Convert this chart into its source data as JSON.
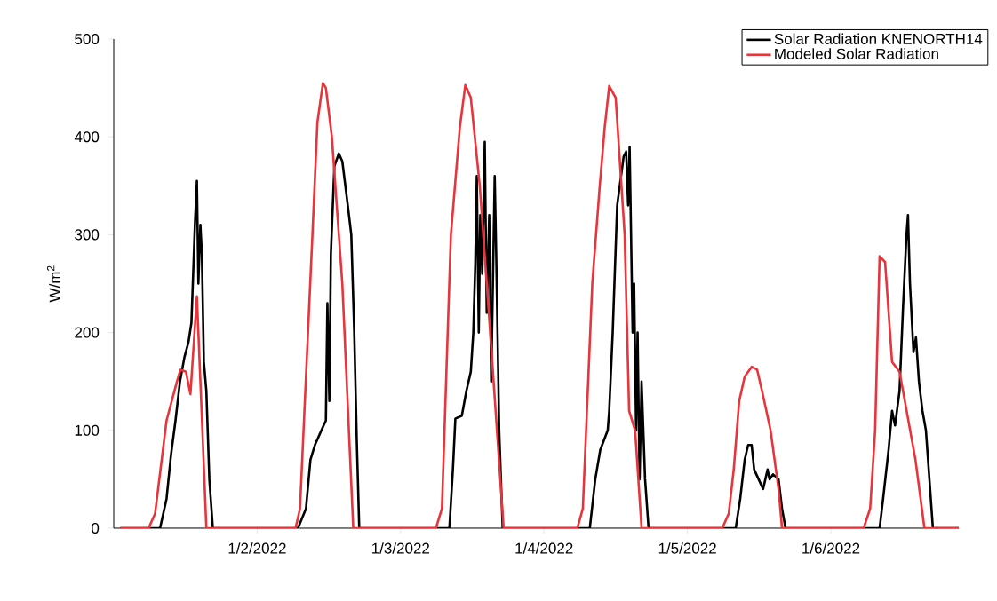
{
  "chart_data": {
    "type": "line",
    "ylabel": "W/m$^{2}$",
    "xlim": [
      "2022-01-01T00:00",
      "2022-01-06T21:25"
    ],
    "xticks": [
      {
        "value": "2022-01-02",
        "label": "1/2/2022"
      },
      {
        "value": "2022-01-03",
        "label": "1/3/2022"
      },
      {
        "value": "2022-01-04",
        "label": "1/4/2022"
      },
      {
        "value": "2022-01-05",
        "label": "1/5/2022"
      },
      {
        "value": "2022-01-06",
        "label": "1/6/2022"
      }
    ],
    "ylim": [
      0,
      500
    ],
    "yticks": [
      0,
      100,
      200,
      300,
      400,
      500
    ],
    "legend": "top right",
    "grid": false,
    "marker": "none",
    "line_style": "solid",
    "series": [
      {
        "name": "Solar Radiation KNENORTH14",
        "color": "#000000",
        "x": [
          "2022-01-01T01:05",
          "2022-01-01T07:45",
          "2022-01-01T08:50",
          "2022-01-01T09:35",
          "2022-01-01T10:20",
          "2022-01-01T11:05",
          "2022-01-01T11:50",
          "2022-01-01T12:30",
          "2022-01-01T13:00",
          "2022-01-01T13:35",
          "2022-01-01T13:55",
          "2022-01-01T14:10",
          "2022-01-01T14:30",
          "2022-01-01T14:45",
          "2022-01-01T15:05",
          "2022-01-01T15:30",
          "2022-01-01T16:00",
          "2022-01-01T16:35",
          "2022-01-02T06:50",
          "2022-01-02T08:10",
          "2022-01-02T08:55",
          "2022-01-02T09:40",
          "2022-01-02T10:45",
          "2022-01-02T11:30",
          "2022-01-02T11:45",
          "2022-01-02T12:05",
          "2022-01-02T12:20",
          "2022-01-02T12:55",
          "2022-01-02T13:40",
          "2022-01-02T14:15",
          "2022-01-02T15:10",
          "2022-01-02T15:45",
          "2022-01-02T16:15",
          "2022-01-02T16:40",
          "2022-01-02T17:05",
          "2022-01-03T08:10",
          "2022-01-03T08:45",
          "2022-01-03T09:10",
          "2022-01-03T10:15",
          "2022-01-03T11:00",
          "2022-01-03T11:45",
          "2022-01-03T12:10",
          "2022-01-03T12:30",
          "2022-01-03T12:45",
          "2022-01-03T13:05",
          "2022-01-03T13:20",
          "2022-01-03T13:40",
          "2022-01-03T14:05",
          "2022-01-03T14:25",
          "2022-01-03T14:50",
          "2022-01-03T15:10",
          "2022-01-03T15:45",
          "2022-01-03T16:00",
          "2022-01-03T16:30",
          "2022-01-03T17:05",
          "2022-01-04T07:40",
          "2022-01-04T08:35",
          "2022-01-04T09:25",
          "2022-01-04T10:40",
          "2022-01-04T10:55",
          "2022-01-04T11:30",
          "2022-01-04T12:15",
          "2022-01-04T13:20",
          "2022-01-04T13:45",
          "2022-01-04T14:05",
          "2022-01-04T14:20",
          "2022-01-04T14:50",
          "2022-01-04T15:05",
          "2022-01-04T15:25",
          "2022-01-04T15:40",
          "2022-01-04T16:00",
          "2022-01-04T16:20",
          "2022-01-04T16:55",
          "2022-01-04T17:30",
          "2022-01-05T08:05",
          "2022-01-05T08:50",
          "2022-01-05T09:35",
          "2022-01-05T10:10",
          "2022-01-05T10:45",
          "2022-01-05T11:10",
          "2022-01-05T11:55",
          "2022-01-05T12:40",
          "2022-01-05T13:25",
          "2022-01-05T13:45",
          "2022-01-05T14:20",
          "2022-01-05T15:15",
          "2022-01-05T15:50",
          "2022-01-05T16:25",
          "2022-01-06T08:10",
          "2022-01-06T08:45",
          "2022-01-06T09:40",
          "2022-01-06T10:15",
          "2022-01-06T10:45",
          "2022-01-06T11:30",
          "2022-01-06T12:05",
          "2022-01-06T12:40",
          "2022-01-06T12:55",
          "2022-01-06T13:15",
          "2022-01-06T13:50",
          "2022-01-06T14:15",
          "2022-01-06T14:45",
          "2022-01-06T15:20",
          "2022-01-06T15:55",
          "2022-01-06T16:30",
          "2022-01-06T17:05",
          "2022-01-06T21:25"
        ],
        "values": [
          0,
          0,
          30,
          75,
          110,
          150,
          175,
          190,
          210,
          310,
          355,
          250,
          310,
          280,
          170,
          140,
          50,
          0,
          0,
          20,
          70,
          85,
          100,
          110,
          230,
          130,
          280,
          370,
          383,
          375,
          330,
          300,
          200,
          90,
          0,
          0,
          60,
          112,
          115,
          140,
          160,
          200,
          270,
          360,
          200,
          320,
          260,
          395,
          220,
          320,
          150,
          360,
          280,
          100,
          0,
          0,
          50,
          80,
          100,
          120,
          200,
          330,
          380,
          385,
          330,
          390,
          200,
          250,
          100,
          200,
          50,
          150,
          50,
          0,
          0,
          30,
          70,
          85,
          85,
          60,
          50,
          40,
          60,
          50,
          55,
          50,
          20,
          0,
          0,
          30,
          80,
          120,
          105,
          140,
          225,
          300,
          320,
          250,
          180,
          195,
          150,
          120,
          100,
          50,
          0,
          0
        ]
      },
      {
        "name": "Modeled Solar Radiation",
        "color": "#e8343a",
        "x": [
          "2022-01-01T01:05",
          "2022-01-01T05:50",
          "2022-01-01T06:55",
          "2022-01-01T08:50",
          "2022-01-01T10:35",
          "2022-01-01T11:10",
          "2022-01-01T12:05",
          "2022-01-01T12:50",
          "2022-01-01T13:55",
          "2022-01-01T14:30",
          "2022-01-01T15:30",
          "2022-01-02T06:25",
          "2022-01-02T07:10",
          "2022-01-02T09:15",
          "2022-01-02T10:05",
          "2022-01-02T11:00",
          "2022-01-02T11:30",
          "2022-01-02T12:30",
          "2022-01-02T14:15",
          "2022-01-02T16:05",
          "2022-01-03T05:55",
          "2022-01-03T06:55",
          "2022-01-03T08:25",
          "2022-01-03T09:55",
          "2022-01-03T10:50",
          "2022-01-03T11:45",
          "2022-01-03T13:15",
          "2022-01-03T15:00",
          "2022-01-03T17:15",
          "2022-01-04T05:35",
          "2022-01-04T06:30",
          "2022-01-04T08:05",
          "2022-01-04T09:20",
          "2022-01-04T10:10",
          "2022-01-04T10:55",
          "2022-01-04T12:00",
          "2022-01-04T13:30",
          "2022-01-04T14:15",
          "2022-01-04T15:15",
          "2022-01-04T16:20",
          "2022-01-05T05:50",
          "2022-01-05T06:55",
          "2022-01-05T07:45",
          "2022-01-05T08:40",
          "2022-01-05T09:35",
          "2022-01-05T10:45",
          "2022-01-05T11:40",
          "2022-01-05T12:30",
          "2022-01-05T13:55",
          "2022-01-05T15:15",
          "2022-01-05T15:50",
          "2022-01-06T05:30",
          "2022-01-06T06:35",
          "2022-01-06T07:25",
          "2022-01-06T08:10",
          "2022-01-06T09:05",
          "2022-01-06T10:15",
          "2022-01-06T11:30",
          "2022-01-06T14:10",
          "2022-01-06T15:40",
          "2022-01-06T21:25"
        ],
        "values": [
          0,
          0,
          15,
          110,
          150,
          162,
          160,
          137,
          237,
          150,
          0,
          0,
          20,
          300,
          415,
          455,
          450,
          400,
          250,
          0,
          0,
          20,
          300,
          410,
          453,
          440,
          350,
          200,
          0,
          0,
          20,
          250,
          350,
          410,
          452,
          440,
          300,
          120,
          100,
          0,
          0,
          15,
          60,
          130,
          155,
          165,
          162,
          140,
          100,
          40,
          0,
          0,
          20,
          100,
          278,
          272,
          170,
          160,
          70,
          0,
          0
        ]
      }
    ]
  }
}
